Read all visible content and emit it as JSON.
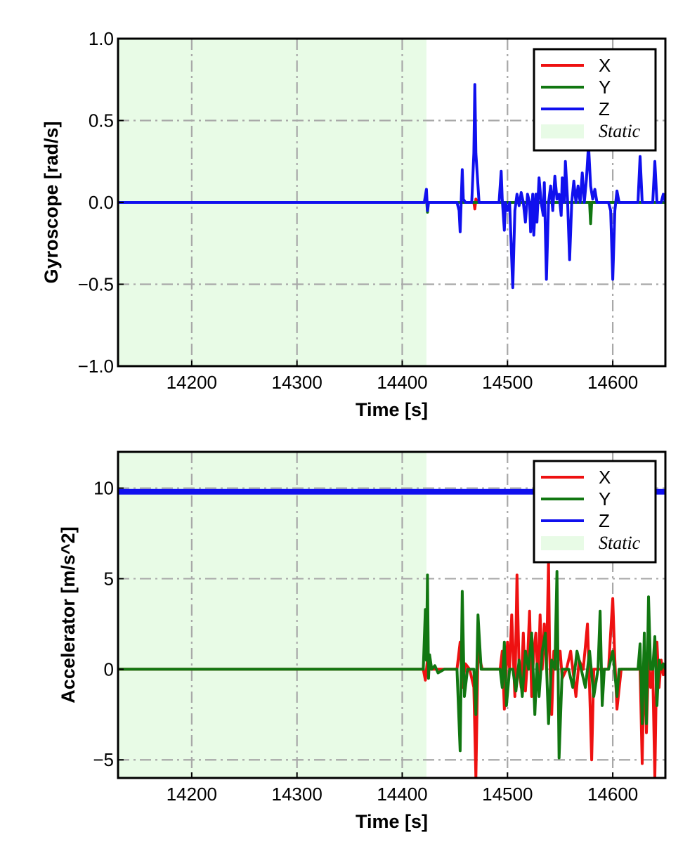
{
  "chart_data": [
    {
      "type": "line",
      "xlabel": "Time [s]",
      "ylabel": "Gyroscope [rad/s]",
      "xlim": [
        14130,
        14650
      ],
      "ylim": [
        -1.0,
        1.0
      ],
      "xticks": [
        14200,
        14300,
        14400,
        14500,
        14600
      ],
      "xtick_labels": [
        "14200",
        "14300",
        "14400",
        "14500",
        "14600"
      ],
      "yticks": [
        -1.0,
        -0.5,
        0.0,
        0.5,
        1.0
      ],
      "ytick_labels": [
        "−1.0",
        "−0.5",
        "0.0",
        "0.5",
        "1.0"
      ],
      "grid": true,
      "legend": "top-right",
      "static_region": {
        "label": "Static",
        "x0": 14130,
        "x1": 14423,
        "color": "#e8fbe6"
      },
      "series": [
        {
          "name": "X",
          "color": "#ee1111",
          "x": [
            14130,
            14421,
            14423,
            14424,
            14425,
            14426,
            14468,
            14469,
            14470,
            14471,
            14480,
            14650
          ],
          "y": [
            0.0,
            0.0,
            0.04,
            -0.03,
            0.0,
            0.0,
            0.0,
            -0.04,
            0.02,
            0.0,
            0.0,
            0.0
          ]
        },
        {
          "name": "Y",
          "color": "#117711",
          "x": [
            14130,
            14421,
            14423,
            14424,
            14425,
            14426,
            14527,
            14528,
            14529,
            14578,
            14579,
            14580,
            14581,
            14650
          ],
          "y": [
            0.0,
            0.0,
            0.03,
            -0.06,
            0.0,
            0.0,
            0.0,
            0.05,
            0.0,
            0.0,
            -0.13,
            0.0,
            0.0,
            0.0
          ]
        },
        {
          "name": "Z",
          "color": "#1010ee",
          "x": [
            14130,
            14421,
            14423,
            14424,
            14425,
            14452,
            14454,
            14455,
            14457,
            14458,
            14460,
            14466,
            14468,
            14469,
            14470,
            14473,
            14492,
            14494,
            14495,
            14497,
            14498,
            14500,
            14502,
            14505,
            14507,
            14509,
            14511,
            14513,
            14515,
            14517,
            14519,
            14521,
            14522,
            14524,
            14525,
            14527,
            14528,
            14530,
            14532,
            14534,
            14535,
            14537,
            14539,
            14541,
            14543,
            14545,
            14547,
            14549,
            14551,
            14552,
            14554,
            14555,
            14557,
            14559,
            14561,
            14563,
            14565,
            14567,
            14569,
            14571,
            14573,
            14575,
            14577,
            14579,
            14581,
            14583,
            14585,
            14590,
            14596,
            14598,
            14600,
            14602,
            14604,
            14606,
            14608,
            14610,
            14615,
            14620,
            14624,
            14626,
            14628,
            14630,
            14633,
            14636,
            14638,
            14640,
            14642,
            14644,
            14646,
            14648,
            14650
          ],
          "y": [
            0.0,
            0.0,
            0.08,
            -0.05,
            0.0,
            0.0,
            -0.05,
            -0.18,
            0.2,
            0.02,
            0.0,
            0.0,
            0.3,
            0.72,
            0.3,
            0.0,
            0.0,
            0.19,
            0.02,
            -0.17,
            0.0,
            -0.05,
            0.0,
            -0.52,
            -0.05,
            0.05,
            -0.02,
            0.06,
            0.0,
            -0.12,
            0.05,
            0.0,
            -0.18,
            0.05,
            -0.2,
            0.05,
            -0.12,
            0.15,
            0.0,
            -0.08,
            0.12,
            -0.47,
            0.0,
            0.1,
            -0.05,
            0.16,
            0.02,
            0.05,
            -0.08,
            0.15,
            0.0,
            0.25,
            0.02,
            -0.35,
            0.0,
            0.13,
            0.0,
            0.1,
            0.0,
            0.18,
            0.0,
            0.14,
            0.35,
            0.1,
            0.02,
            0.08,
            0.0,
            0.0,
            0.0,
            -0.05,
            -0.47,
            -0.05,
            0.07,
            0.0,
            0.0,
            0.0,
            0.0,
            0.0,
            0.0,
            0.28,
            0.0,
            0.0,
            0.0,
            0.0,
            0.0,
            0.25,
            0.0,
            0.0,
            0.0,
            0.05,
            0.0
          ]
        }
      ]
    },
    {
      "type": "line",
      "xlabel": "Time [s]",
      "ylabel": "Accelerator [m/s^2]",
      "xlim": [
        14130,
        14650
      ],
      "ylim": [
        -6.0,
        12.0
      ],
      "xticks": [
        14200,
        14300,
        14400,
        14500,
        14600
      ],
      "xtick_labels": [
        "14200",
        "14300",
        "14400",
        "14500",
        "14600"
      ],
      "yticks": [
        -5,
        0,
        5,
        10
      ],
      "ytick_labels": [
        "−5",
        "0",
        "5",
        "10"
      ],
      "grid": true,
      "legend": "top-right",
      "static_region": {
        "label": "Static",
        "x0": 14130,
        "x1": 14423,
        "color": "#e8fbe6"
      },
      "series": [
        {
          "name": "Z",
          "color": "#1010ee",
          "x": [
            14130,
            14650
          ],
          "y": [
            9.8,
            9.8
          ]
        },
        {
          "name": "X",
          "color": "#ee1111",
          "x": [
            14130,
            14420,
            14422,
            14424,
            14426,
            14428,
            14440,
            14452,
            14455,
            14457,
            14460,
            14464,
            14468,
            14470,
            14472,
            14476,
            14480,
            14485,
            14490,
            14493,
            14495,
            14497,
            14500,
            14502,
            14504,
            14507,
            14509,
            14511,
            14513,
            14515,
            14517,
            14519,
            14521,
            14523,
            14525,
            14527,
            14529,
            14531,
            14533,
            14535,
            14537,
            14539,
            14540,
            14542,
            14544,
            14546,
            14548,
            14550,
            14552,
            14556,
            14560,
            14562,
            14565,
            14568,
            14572,
            14576,
            14578,
            14580,
            14582,
            14585,
            14590,
            14596,
            14598,
            14600,
            14602,
            14604,
            14608,
            14612,
            14616,
            14620,
            14624,
            14626,
            14628,
            14630,
            14632,
            14634,
            14636,
            14638,
            14640,
            14642,
            14644,
            14646,
            14648,
            14650
          ],
          "y": [
            0.0,
            0.0,
            -0.6,
            0.5,
            0.0,
            0.0,
            0.0,
            0.0,
            1.5,
            -1.0,
            0.3,
            0.0,
            -1.0,
            -6.0,
            1.0,
            0.0,
            0.0,
            0.0,
            0.0,
            0.0,
            1.0,
            -2.2,
            1.5,
            0.0,
            3.0,
            -1.5,
            5.2,
            0.0,
            -1.0,
            2.0,
            -1.2,
            0.5,
            3.2,
            -1.5,
            1.0,
            2.0,
            -1.0,
            3.0,
            0.0,
            2.5,
            0.0,
            6.0,
            1.0,
            -2.5,
            1.0,
            0.0,
            0.5,
            1.0,
            -0.5,
            0.0,
            1.0,
            0.0,
            -1.5,
            0.5,
            0.0,
            2.5,
            -1.0,
            -5.0,
            0.0,
            0.0,
            0.0,
            0.0,
            2.0,
            3.9,
            0.5,
            -2.2,
            0.0,
            0.0,
            0.0,
            0.0,
            0.0,
            0.0,
            -5.2,
            1.0,
            -3.5,
            0.5,
            -1.0,
            0.0,
            -6.0,
            1.5,
            -1.0,
            0.5,
            -0.3,
            0.0
          ]
        },
        {
          "name": "Y",
          "color": "#117711",
          "x": [
            14130,
            14420,
            14422,
            14423,
            14424,
            14425,
            14426,
            14428,
            14431,
            14434,
            14440,
            14446,
            14450,
            14452,
            14455,
            14457,
            14459,
            14462,
            14466,
            14468,
            14470,
            14472,
            14475,
            14480,
            14485,
            14490,
            14493,
            14495,
            14497,
            14499,
            14502,
            14505,
            14508,
            14511,
            14514,
            14517,
            14520,
            14523,
            14526,
            14528,
            14530,
            14533,
            14536,
            14539,
            14542,
            14545,
            14547,
            14549,
            14552,
            14555,
            14558,
            14562,
            14566,
            14570,
            14574,
            14578,
            14582,
            14586,
            14588,
            14590,
            14592,
            14594,
            14596,
            14600,
            14604,
            14606,
            14608,
            14612,
            14616,
            14620,
            14624,
            14626,
            14628,
            14630,
            14632,
            14634,
            14636,
            14638,
            14640,
            14642,
            14644,
            14646,
            14648,
            14650
          ],
          "y": [
            0.0,
            0.0,
            3.3,
            0.5,
            5.2,
            -0.5,
            0.8,
            0.0,
            0.2,
            -0.2,
            0.0,
            0.0,
            0.0,
            0.0,
            -4.5,
            4.3,
            -1.5,
            0.0,
            0.0,
            0.0,
            -2.5,
            3.0,
            0.0,
            0.0,
            0.0,
            0.0,
            0.0,
            -1.0,
            1.5,
            -2.0,
            0.0,
            0.0,
            -1.2,
            0.5,
            -1.5,
            1.0,
            0.0,
            2.0,
            -2.5,
            0.3,
            -1.5,
            1.0,
            2.0,
            -3.0,
            0.5,
            0.0,
            5.4,
            -4.9,
            0.0,
            0.0,
            0.0,
            -1.0,
            1.0,
            0.0,
            -1.0,
            1.0,
            -1.5,
            0.0,
            3.2,
            -2.0,
            0.0,
            0.0,
            0.0,
            1.0,
            -1.5,
            0.0,
            0.0,
            0.0,
            0.0,
            0.0,
            0.0,
            1.4,
            -3.0,
            2.0,
            -3.0,
            4.0,
            0.0,
            0.0,
            1.8,
            -2.0,
            0.5,
            0.0,
            0.3,
            0.0
          ]
        }
      ]
    }
  ],
  "legend_entries": [
    "X",
    "Y",
    "Z",
    "Static"
  ]
}
